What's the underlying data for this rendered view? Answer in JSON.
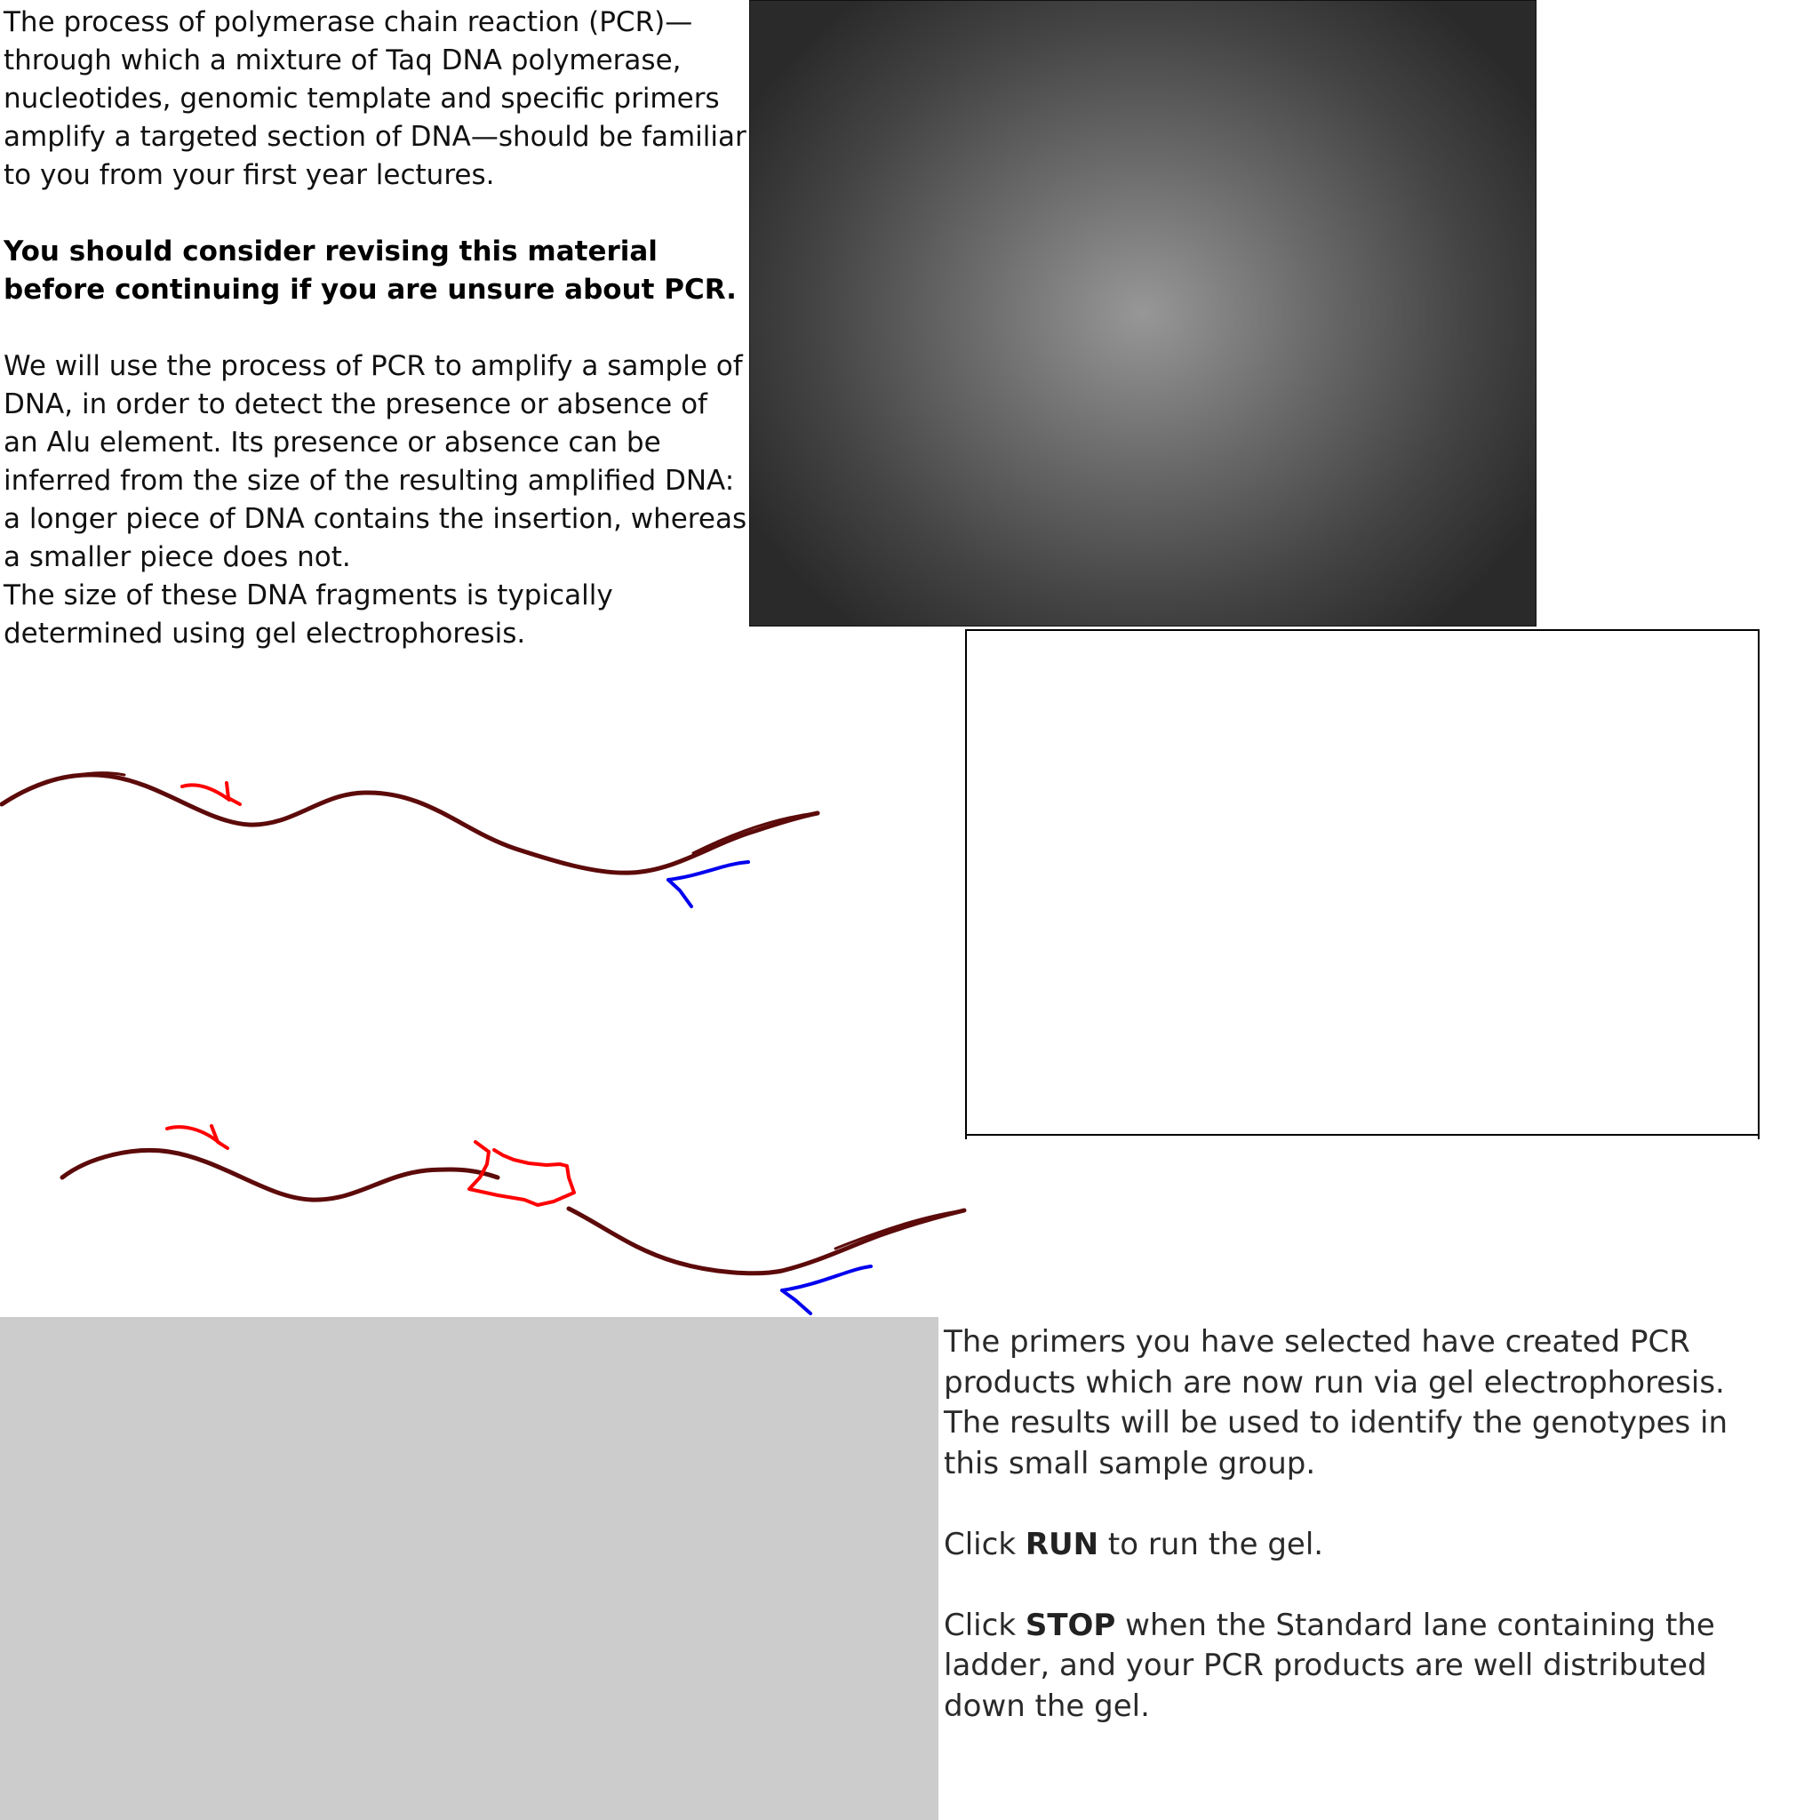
{
  "intro": {
    "para1": "The process of polymerase chain reaction (PCR)—through which a mixture of Taq DNA polymerase, nucleotides, genomic template and specific primers amplify a targeted section of DNA—should be familiar to you from your first year lectures.",
    "para2": "You should consider revising this material before continuing if you are unsure about PCR.",
    "para3": "We will use the process of PCR to amplify a sample of DNA, in order to detect the presence or absence of an Alu element. Its presence or absence can be inferred from the size of the resulting amplified DNA: a longer piece of DNA contains the insertion, whereas a smaller piece does not.",
    "para4": "The size of these DNA fragments is typically determined using gel electrophoresis."
  },
  "instructions": {
    "para1": "The primers you have selected have created PCR products which are now run via gel electrophoresis. The results will be used to identify the genotypes in this small sample group.",
    "run_prefix": "Click ",
    "run_label": "RUN",
    "run_suffix": " to run the gel.",
    "stop_prefix": "Click ",
    "stop_label": "STOP",
    "stop_suffix": " when the Standard lane containing the ladder, and your PCR products are well distributed down the gel."
  },
  "colors": {
    "dna_strand": "#5c0a0a",
    "forward_primer": "#ff0000",
    "reverse_primer": "#0000ee",
    "alu_insert": "#ff0000",
    "gel_bg": "#444444",
    "grey_panel": "#cccccc"
  },
  "icons": {
    "forward_primer": "red-arrow",
    "reverse_primer": "blue-arrow",
    "alu_insertion": "red-box"
  }
}
